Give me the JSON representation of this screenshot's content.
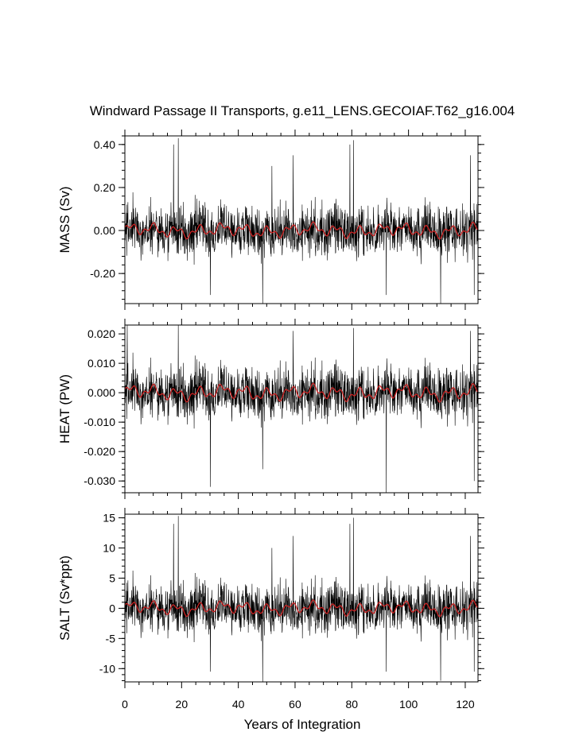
{
  "title": "Windward Passage II Transports, g.e11_LENS.GECOIAF.T62_g16.004",
  "chart_data": [
    {
      "type": "line",
      "ylabel": "MASS (Sv)",
      "ylim": [
        -0.34,
        0.44
      ],
      "yticks": [
        0.4,
        0.2,
        0.0,
        -0.2
      ],
      "ytick_labels": [
        "0.40",
        "0.20",
        "0.00",
        "-0.20"
      ],
      "noise_amplitude": 0.085,
      "smooth_amplitude": 0.035,
      "spikes": [
        [
          17.2,
          0.4
        ],
        [
          18.8,
          0.43
        ],
        [
          30.2,
          -0.3
        ],
        [
          48.6,
          -0.34
        ],
        [
          51.8,
          0.3
        ],
        [
          59.3,
          0.35
        ],
        [
          79.3,
          0.4
        ],
        [
          80.6,
          0.42
        ],
        [
          92.2,
          -0.3
        ],
        [
          111.3,
          -0.34
        ],
        [
          121.8,
          0.35
        ],
        [
          123.2,
          -0.3
        ]
      ],
      "series": [
        {
          "name": "",
          "color": "#000000",
          "kind": "monthly"
        },
        {
          "name": "",
          "color": "#cc2222",
          "kind": "smoothed"
        }
      ]
    },
    {
      "type": "line",
      "ylabel": "HEAT (PW)",
      "ylim": [
        -0.034,
        0.023
      ],
      "yticks": [
        0.02,
        0.01,
        0.0,
        -0.01,
        -0.02,
        -0.03
      ],
      "ytick_labels": [
        "0.020",
        "0.010",
        "0.000",
        "-0.010",
        "-0.020",
        "-0.030"
      ],
      "noise_amplitude": 0.0065,
      "smooth_amplitude": 0.0028,
      "spikes": [
        [
          0.8,
          0.023
        ],
        [
          18.8,
          0.023
        ],
        [
          30.2,
          -0.032
        ],
        [
          48.6,
          -0.026
        ],
        [
          59.3,
          0.021
        ],
        [
          80.6,
          0.022
        ],
        [
          92.2,
          -0.034
        ],
        [
          121.8,
          0.021
        ],
        [
          123.2,
          -0.03
        ]
      ],
      "series": [
        {
          "name": "",
          "color": "#000000",
          "kind": "monthly"
        },
        {
          "name": "",
          "color": "#cc2222",
          "kind": "smoothed"
        }
      ]
    },
    {
      "type": "line",
      "ylabel": "SALT (Sv*ppt)",
      "ylim": [
        -12.2,
        15.6
      ],
      "yticks": [
        15,
        10,
        5,
        0,
        -5,
        -10
      ],
      "ytick_labels": [
        "15",
        "10",
        "5",
        "0",
        "-5",
        "-10"
      ],
      "noise_amplitude": 3.0,
      "smooth_amplitude": 1.2,
      "spikes": [
        [
          17.2,
          14.0
        ],
        [
          18.8,
          15.3
        ],
        [
          30.2,
          -10.5
        ],
        [
          48.6,
          -12.2
        ],
        [
          51.8,
          10.0
        ],
        [
          59.3,
          12.0
        ],
        [
          79.3,
          14.0
        ],
        [
          80.6,
          15.0
        ],
        [
          92.2,
          -10.5
        ],
        [
          111.3,
          -12.0
        ],
        [
          121.8,
          12.0
        ],
        [
          123.2,
          -10.5
        ]
      ],
      "series": [
        {
          "name": "",
          "color": "#000000",
          "kind": "monthly"
        },
        {
          "name": "",
          "color": "#cc2222",
          "kind": "smoothed"
        }
      ]
    }
  ],
  "x_axis": {
    "xlabel": "Years of Integration",
    "xlim": [
      0,
      124.5
    ],
    "xticks": [
      0,
      20,
      40,
      60,
      80,
      100,
      120
    ],
    "xtick_labels": [
      "0",
      "20",
      "40",
      "60",
      "80",
      "100",
      "120"
    ]
  }
}
